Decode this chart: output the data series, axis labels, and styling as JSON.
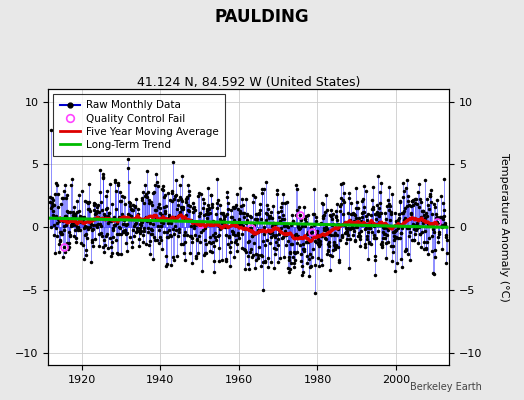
{
  "title": "PAULDING",
  "subtitle": "41.124 N, 84.592 W (United States)",
  "ylabel": "Temperature Anomaly (°C)",
  "credit": "Berkeley Earth",
  "xlim": [
    1911.5,
    2013.5
  ],
  "ylim": [
    -11,
    11
  ],
  "yticks": [
    -10,
    -5,
    0,
    5,
    10
  ],
  "xticks": [
    1920,
    1940,
    1960,
    1980,
    2000
  ],
  "start_year": 1912,
  "end_year": 2012,
  "seed": 137,
  "raw_color": "#4444ff",
  "raw_color_dark": "#0000cc",
  "moving_avg_color": "#dd0000",
  "trend_color": "#00bb00",
  "qc_color": "#ff44ff",
  "bg_color": "#e8e8e8",
  "plot_bg_color": "#ffffff",
  "grid_color": "#cccccc"
}
